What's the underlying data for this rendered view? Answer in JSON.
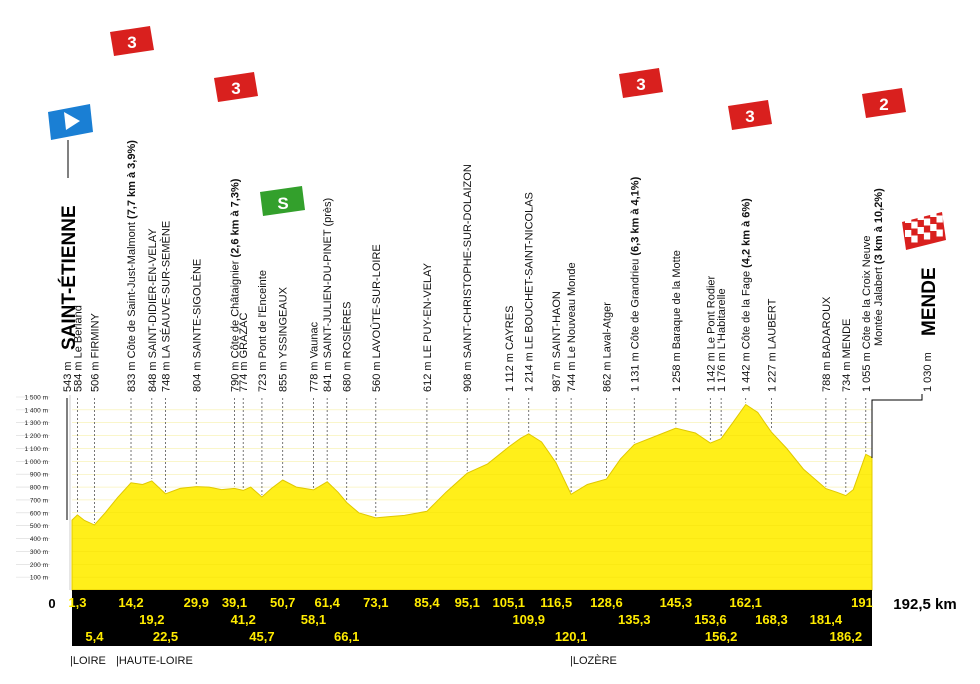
{
  "stage": {
    "start": {
      "alt": "543 m",
      "name": "SAINT-ÉTIENNE"
    },
    "finish": {
      "alt": "1 030 m",
      "name": "MENDE"
    },
    "total_distance": "192,5 km",
    "zero_label": "0"
  },
  "altitude_axis": [
    "100 m",
    "200 m",
    "300 m",
    "400 m",
    "500 m",
    "600 m",
    "700 m",
    "800 m",
    "900 m",
    "1 000 m",
    "1 100 m",
    "1 200 m",
    "1 300 m",
    "1 400 m",
    "1 500 m"
  ],
  "waypoints": [
    {
      "id": "le-berland",
      "alt": "584 m",
      "name": "Le Berland",
      "bold": false,
      "suffix": "",
      "km": 1.3
    },
    {
      "id": "firminy",
      "alt": "506 m",
      "name": "FIRMINY",
      "bold": false,
      "suffix": "",
      "km": 5.4
    },
    {
      "id": "saint-just-malmont",
      "alt": "833 m",
      "name": "Côte de Saint-Just-Malmont",
      "bold": false,
      "suffix": "(7,7 km à 3,9%)",
      "km": 14.2
    },
    {
      "id": "saint-didier",
      "alt": "848 m",
      "name": "SAINT-DIDIER-EN-VELAY",
      "bold": false,
      "suffix": "",
      "km": 19.2
    },
    {
      "id": "seauve",
      "alt": "748 m",
      "name": "LA SÉAUVE-SUR-SEMÈNE",
      "bold": false,
      "suffix": "",
      "km": 22.5
    },
    {
      "id": "sainte-sigolene",
      "alt": "804 m",
      "name": "SAINTE-SIGOLÈNE",
      "bold": false,
      "suffix": "",
      "km": 29.9
    },
    {
      "id": "chataignier",
      "alt": "790 m",
      "name": "Côte de Châtaignier",
      "bold": false,
      "suffix": "(2,6 km à 7,3%)",
      "km": 39.1
    },
    {
      "id": "grazac",
      "alt": "774 m",
      "name": "GRAZAC",
      "bold": false,
      "suffix": "",
      "km": 41.2
    },
    {
      "id": "pont-enceinte",
      "alt": "723 m",
      "name": "Pont de l'Enceinte",
      "bold": false,
      "suffix": "",
      "km": 45.7
    },
    {
      "id": "yssingeaux",
      "alt": "855 m",
      "name": "YSSINGEAUX",
      "bold": false,
      "suffix": "",
      "km": 50.7
    },
    {
      "id": "vaunac",
      "alt": "778 m",
      "name": "Vaunac",
      "bold": false,
      "suffix": "",
      "km": 58.1
    },
    {
      "id": "saint-julien",
      "alt": "841 m",
      "name": "SAINT-JULIEN-DU-PINET (près)",
      "bold": false,
      "suffix": "",
      "km": 61.4
    },
    {
      "id": "rosieres",
      "alt": "680 m",
      "name": "ROSIÈRES",
      "bold": false,
      "suffix": "",
      "km": 66.1
    },
    {
      "id": "lavoute",
      "alt": "560 m",
      "name": "LAVOÛTE-SUR-LOIRE",
      "bold": false,
      "suffix": "",
      "km": 73.1
    },
    {
      "id": "le-puy",
      "alt": "612 m",
      "name": "LE PUY-EN-VELAY",
      "bold": false,
      "suffix": "",
      "km": 85.4
    },
    {
      "id": "saint-christophe",
      "alt": "908 m",
      "name": "SAINT-CHRISTOPHE-SUR-DOLAIZON",
      "bold": false,
      "suffix": "",
      "km": 95.1
    },
    {
      "id": "cayres",
      "alt": "1 112 m",
      "name": "CAYRES",
      "bold": false,
      "suffix": "",
      "km": 105.1
    },
    {
      "id": "bouchet",
      "alt": "1 214 m",
      "name": "LE BOUCHET-SAINT-NICOLAS",
      "bold": false,
      "suffix": "",
      "km": 109.9
    },
    {
      "id": "saint-haon",
      "alt": "987 m",
      "name": "SAINT-HAON",
      "bold": false,
      "suffix": "",
      "km": 116.5
    },
    {
      "id": "nouveau-monde",
      "alt": "744 m",
      "name": "Le Nouveau Monde",
      "bold": false,
      "suffix": "",
      "km": 120.1
    },
    {
      "id": "laval-atger",
      "alt": "862 m",
      "name": "Laval-Atger",
      "bold": false,
      "suffix": "",
      "km": 128.6
    },
    {
      "id": "grandrieu",
      "alt": "1 131 m",
      "name": "Côte de Grandrieu",
      "bold": false,
      "suffix": "(6,3 km à 4,1%)",
      "km": 135.3
    },
    {
      "id": "baraque-motte",
      "alt": "1 258 m",
      "name": "Baraque de la Motte",
      "bold": false,
      "suffix": "",
      "km": 145.3
    },
    {
      "id": "pont-rodier",
      "alt": "1 142 m",
      "name": "Le Pont Rodier",
      "bold": false,
      "suffix": "",
      "km": 153.6
    },
    {
      "id": "habitarelle",
      "alt": "1 176 m",
      "name": "L'Habitarelle",
      "bold": false,
      "suffix": "",
      "km": 156.2
    },
    {
      "id": "fage",
      "alt": "1 442 m",
      "name": "Côte de la Fage",
      "bold": false,
      "suffix": "(4,2 km à 6%)",
      "km": 162.1
    },
    {
      "id": "laubert",
      "alt": "1 227 m",
      "name": "LAUBERT",
      "bold": false,
      "suffix": "",
      "km": 168.3
    },
    {
      "id": "badaroux",
      "alt": "788 m",
      "name": "BADAROUX",
      "bold": false,
      "suffix": "",
      "km": 181.4
    },
    {
      "id": "mende-town",
      "alt": "734 m",
      "name": "MENDE",
      "bold": false,
      "suffix": "",
      "km": 186.2
    },
    {
      "id": "croix-neuve",
      "alt": "1 055 m",
      "name": "Côte de la Croix Neuve",
      "name2": "Montée Jalabert",
      "bold": false,
      "suffix": "(3 km à 10,2%)",
      "km": 191
    }
  ],
  "distance_row1": [
    "1,3",
    "14,2",
    "29,9",
    "39,1",
    "50,7",
    "61,4",
    "73,1",
    "85,4",
    "95,1",
    "105,1",
    "116,5",
    "128,6",
    "145,3",
    "162,1",
    "191"
  ],
  "distance_row2": [
    "19,2",
    "41,2",
    "58,1",
    "109,9",
    "135,3",
    "153,6",
    "168,3",
    "181,4"
  ],
  "distance_row3": [
    "5,4",
    "22,5",
    "45,7",
    "66,1",
    "120,1",
    "156,2",
    "186,2"
  ],
  "climb_badges": [
    {
      "id": "saint-just-malmont",
      "category": "3",
      "color": "#d9201e"
    },
    {
      "id": "chataignier",
      "category": "3",
      "color": "#d9201e"
    },
    {
      "id": "grandrieu",
      "category": "3",
      "color": "#d9201e"
    },
    {
      "id": "fage",
      "category": "3",
      "color": "#d9201e"
    },
    {
      "id": "croix-neuve",
      "category": "2",
      "color": "#d9201e"
    }
  ],
  "sprint_badge": {
    "id": "yssingeaux",
    "label": "S",
    "color": "#33a02c"
  },
  "start_icon": {
    "name": "start-flag-icon",
    "color": "#1a7fd4"
  },
  "finish_icon": {
    "name": "checkered-flag-icon",
    "color": "#d9201e"
  },
  "departments": [
    {
      "label": "LOIRE",
      "km": 0
    },
    {
      "label": "HAUTE-LOIRE",
      "km": 5.4
    },
    {
      "label": "LOZÈRE",
      "km": 120.1
    }
  ],
  "colors": {
    "profile_fill": "#ffef1a",
    "profile_stroke": "#e0c800",
    "band": "#000000",
    "band_text": "#ffeb00",
    "grid": "#d8d8d8"
  },
  "chart_data": {
    "type": "area",
    "x_unit": "km",
    "y_unit": "m",
    "ylim": [
      0,
      1500
    ],
    "xlim": [
      0,
      192.5
    ],
    "x": [
      0,
      1.3,
      3,
      5.4,
      8,
      11,
      14.2,
      17,
      19.2,
      22.5,
      26,
      29.9,
      33,
      36,
      39.1,
      41.2,
      43,
      45.7,
      48,
      50.7,
      54,
      58.1,
      61.4,
      64,
      66.1,
      69,
      73.1,
      76,
      80,
      85.4,
      90,
      95.1,
      100,
      105.1,
      108,
      109.9,
      113,
      116.5,
      120.1,
      124,
      128.6,
      132,
      135.3,
      140,
      145.3,
      150,
      153.6,
      156.2,
      159,
      162.1,
      165,
      168.3,
      172,
      176,
      181.4,
      184,
      186.2,
      188,
      191,
      192.5
    ],
    "y": [
      543,
      584,
      540,
      506,
      600,
      720,
      833,
      820,
      848,
      748,
      790,
      804,
      800,
      780,
      790,
      774,
      800,
      723,
      790,
      855,
      800,
      778,
      841,
      760,
      680,
      600,
      560,
      570,
      580,
      612,
      760,
      908,
      980,
      1112,
      1180,
      1214,
      1150,
      987,
      744,
      820,
      862,
      1020,
      1131,
      1190,
      1258,
      1220,
      1142,
      1176,
      1300,
      1442,
      1380,
      1227,
      1100,
      940,
      788,
      760,
      734,
      780,
      1055,
      1030
    ]
  }
}
